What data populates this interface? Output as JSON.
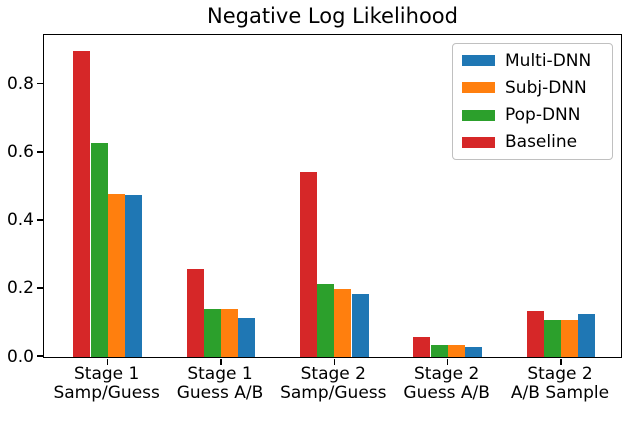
{
  "title": "Negative Log Likelihood",
  "chart_data": {
    "type": "bar",
    "title": "Negative Log Likelihood",
    "categories": [
      [
        "Stage 1",
        "Samp/Guess"
      ],
      [
        "Stage 1",
        "Guess A/B"
      ],
      [
        "Stage 2",
        "Samp/Guess"
      ],
      [
        "Stage 2",
        "Guess A/B"
      ],
      [
        "Stage 2",
        "A/B Sample"
      ]
    ],
    "series": [
      {
        "name": "Multi-DNN",
        "color": "#1f77b4",
        "values": [
          0.475,
          0.115,
          0.185,
          0.03,
          0.125
        ]
      },
      {
        "name": "Subj-DNN",
        "color": "#ff7f0e",
        "values": [
          0.48,
          0.14,
          0.2,
          0.035,
          0.11
        ]
      },
      {
        "name": "Pop-DNN",
        "color": "#2ca02c",
        "values": [
          0.63,
          0.14,
          0.215,
          0.035,
          0.11
        ]
      },
      {
        "name": "Baseline",
        "color": "#d62728",
        "values": [
          0.9,
          0.26,
          0.545,
          0.06,
          0.135
        ]
      }
    ],
    "bar_draw_order_left_to_right": [
      "Baseline",
      "Pop-DNN",
      "Subj-DNN",
      "Multi-DNN"
    ],
    "xlabel": "",
    "ylabel": "",
    "ylim": [
      0,
      0.943
    ],
    "ytick_values": [
      0.0,
      0.2,
      0.4,
      0.6,
      0.8
    ],
    "ytick_labels": [
      "0.0",
      "0.2",
      "0.4",
      "0.6",
      "0.8"
    ],
    "grid": false,
    "legend_position": "upper right",
    "legend_entries": [
      "Multi-DNN",
      "Subj-DNN",
      "Pop-DNN",
      "Baseline"
    ]
  }
}
